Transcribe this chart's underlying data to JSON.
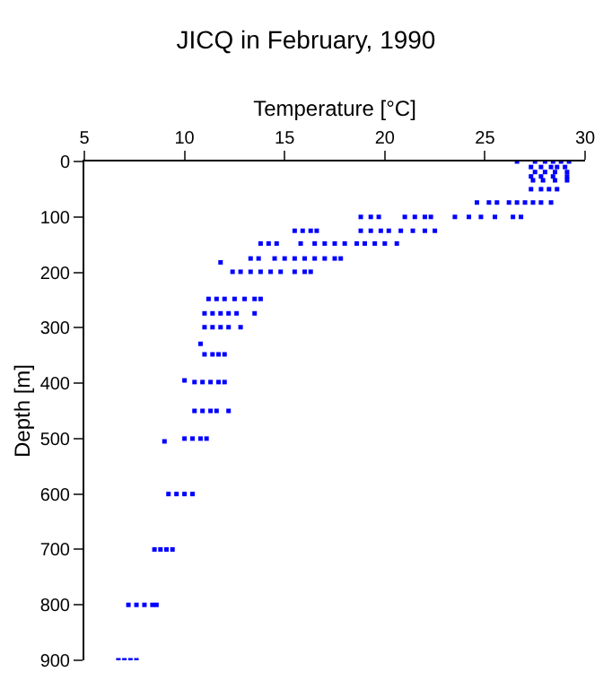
{
  "chart_data": {
    "type": "scatter",
    "title": "JICQ in February, 1990",
    "xlabel": "Temperature [°C]",
    "ylabel": "Depth [m]",
    "xlim": [
      5,
      30
    ],
    "xticks": [
      5,
      10,
      15,
      20,
      25,
      30
    ],
    "ylim": [
      900,
      0
    ],
    "yticks": [
      0,
      100,
      200,
      300,
      400,
      500,
      600,
      700,
      800,
      900
    ],
    "marker": "square",
    "series": [
      {
        "color": "#0000ff",
        "x": [
          26.6,
          27.5,
          28.0,
          28.4,
          28.8,
          29.2,
          27.3,
          27.8,
          28.3,
          28.6,
          29.0,
          27.5,
          28.0,
          28.5,
          29.1,
          27.3,
          27.8,
          28.4,
          29.1,
          27.4,
          27.9,
          28.5,
          29.1,
          27.3,
          27.8,
          28.2,
          28.6,
          24.6,
          25.2,
          25.6,
          26.2,
          26.6,
          27.0,
          27.4,
          27.8,
          28.3,
          18.8,
          19.3,
          19.7,
          21.0,
          21.5,
          22.0,
          22.3,
          23.5,
          24.2,
          24.8,
          25.5,
          26.4,
          26.8,
          15.5,
          15.9,
          16.3,
          16.6,
          18.8,
          19.3,
          19.8,
          20.2,
          20.8,
          21.4,
          22.0,
          22.5,
          13.8,
          14.2,
          14.6,
          15.8,
          16.5,
          17.0,
          17.5,
          18.0,
          18.6,
          19.0,
          19.5,
          20.0,
          20.6,
          13.3,
          13.7,
          14.5,
          15.0,
          15.5,
          16.0,
          16.5,
          17.0,
          17.5,
          17.8,
          11.8,
          12.4,
          12.8,
          13.3,
          13.8,
          14.3,
          14.8,
          15.5,
          16.0,
          16.3,
          11.2,
          11.6,
          12.0,
          12.5,
          13.0,
          13.5,
          13.8,
          11.0,
          11.4,
          11.8,
          12.2,
          12.6,
          13.5,
          11.0,
          11.4,
          11.8,
          12.2,
          12.8,
          10.8,
          11.0,
          11.4,
          11.7,
          12.0,
          10.0,
          10.5,
          10.9,
          11.3,
          11.7,
          12.0,
          10.5,
          10.9,
          11.3,
          11.6,
          12.2,
          9.0,
          10.0,
          10.4,
          10.8,
          11.1,
          9.2,
          9.6,
          10.0,
          10.4,
          8.5,
          8.8,
          9.1,
          9.4,
          7.2,
          7.6,
          8.0,
          8.4,
          8.6,
          6.7,
          7.0,
          7.3,
          7.6
        ],
        "values": [
          0,
          0,
          0,
          0,
          0,
          0,
          10,
          10,
          10,
          10,
          10,
          19,
          19,
          19,
          19,
          27,
          27,
          27,
          27,
          34,
          34,
          34,
          34,
          50,
          50,
          50,
          50,
          74,
          74,
          74,
          74,
          74,
          74,
          74,
          74,
          74,
          100,
          100,
          100,
          100,
          100,
          100,
          100,
          100,
          100,
          100,
          100,
          100,
          100,
          125,
          125,
          125,
          125,
          125,
          125,
          125,
          125,
          125,
          125,
          125,
          125,
          148,
          148,
          148,
          148,
          148,
          148,
          148,
          148,
          148,
          148,
          148,
          148,
          148,
          175,
          175,
          175,
          175,
          175,
          175,
          175,
          175,
          175,
          175,
          182,
          199,
          199,
          199,
          199,
          199,
          199,
          199,
          199,
          199,
          248,
          248,
          248,
          248,
          248,
          248,
          248,
          274,
          274,
          274,
          274,
          274,
          274,
          299,
          299,
          299,
          299,
          299,
          329,
          348,
          348,
          348,
          348,
          395,
          398,
          398,
          398,
          398,
          398,
          450,
          450,
          450,
          450,
          450,
          505,
          500,
          500,
          500,
          500,
          600,
          600,
          600,
          600,
          700,
          700,
          700,
          700,
          800,
          800,
          800,
          800,
          800,
          900,
          900,
          900,
          900
        ]
      }
    ]
  }
}
